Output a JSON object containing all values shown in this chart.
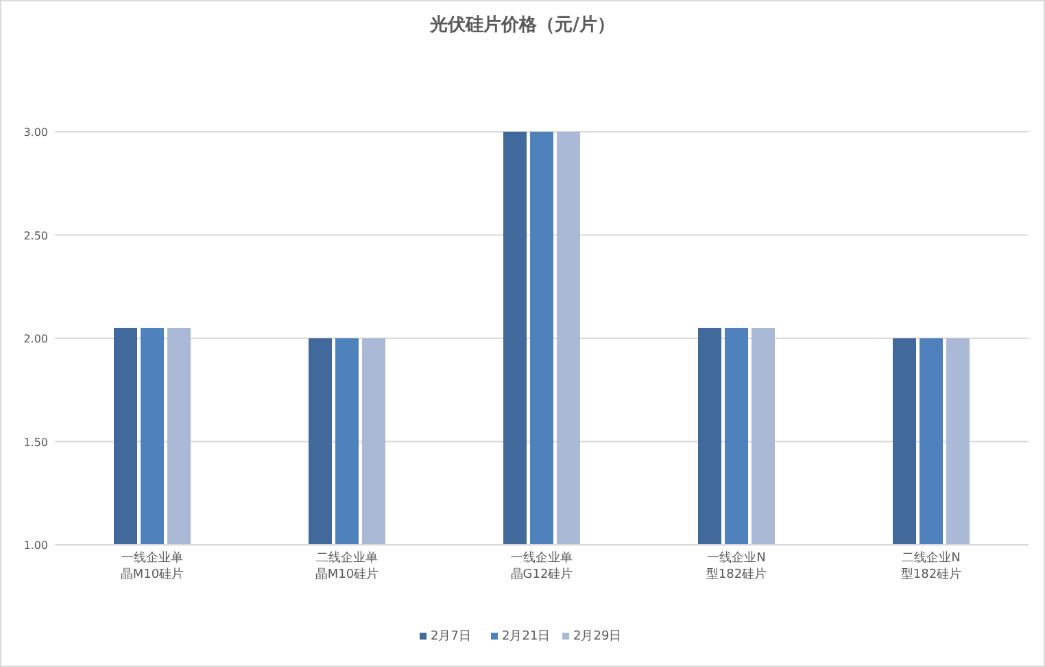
{
  "chart_data": {
    "type": "bar",
    "title": "光伏硅片价格（元/片）",
    "categories": [
      "一线企业单晶M10硅片",
      "二线企业单晶M10硅片",
      "一线企业单晶G12硅片",
      "一线企业N型182硅片",
      "二线企业N型182硅片"
    ],
    "series": [
      {
        "name": "2月7日",
        "color": "#41699b",
        "values": [
          2.05,
          2.0,
          3.0,
          2.05,
          2.0
        ]
      },
      {
        "name": "2月21日",
        "color": "#4f81bd",
        "values": [
          2.05,
          2.0,
          3.0,
          2.05,
          2.0
        ]
      },
      {
        "name": "2月29日",
        "color": "#a9b9d6",
        "values": [
          2.05,
          2.0,
          3.0,
          2.05,
          2.0
        ]
      }
    ],
    "ylim": [
      1.0,
      3.0
    ],
    "yticks": [
      {
        "value": 1,
        "label": "1.00"
      },
      {
        "value": 1.5,
        "label": "1.50"
      },
      {
        "value": 2,
        "label": "2.00"
      },
      {
        "value": 2.5,
        "label": "2.50"
      },
      {
        "value": 3,
        "label": "3.00"
      }
    ],
    "grid": "y",
    "legend": "bottom"
  }
}
